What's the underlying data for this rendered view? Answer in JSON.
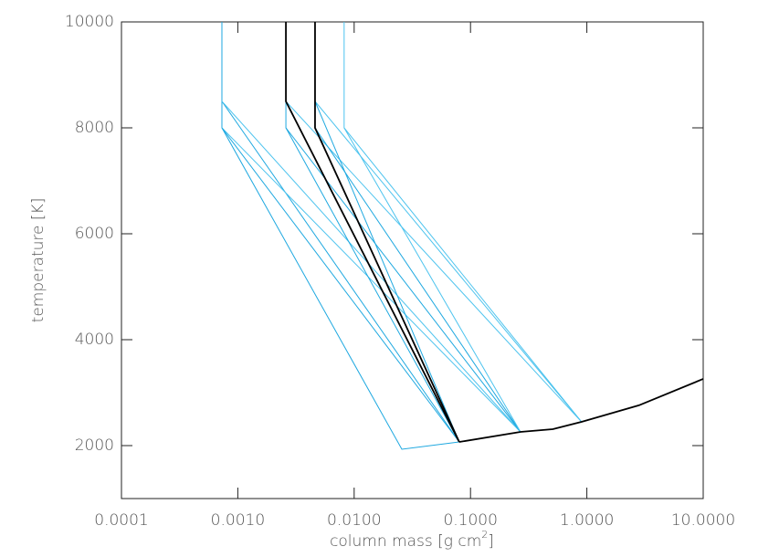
{
  "chart_data": {
    "type": "line",
    "xlabel": [
      "column mass [g cm",
      "2",
      "]"
    ],
    "ylabel": "temperature [K]",
    "xscale": "log",
    "xlim": [
      0.0001,
      10
    ],
    "ylim": [
      1000,
      10000
    ],
    "xticks": [
      {
        "value": 0.0001,
        "label": "0.0001"
      },
      {
        "value": 0.001,
        "label": "0.0010"
      },
      {
        "value": 0.01,
        "label": "0.0100"
      },
      {
        "value": 0.1,
        "label": "0.1000"
      },
      {
        "value": 1,
        "label": "1.0000"
      },
      {
        "value": 10,
        "label": "10.0000"
      }
    ],
    "yticks": [
      2000,
      4000,
      6000,
      8000,
      10000
    ],
    "series": [
      {
        "color": "#1ea8e0",
        "x": [
          0.00073,
          0.00073,
          0.0257,
          0.08
        ],
        "values": [
          10000,
          8000,
          1931,
          2069
        ]
      },
      {
        "color": "#1ea8e0",
        "x": [
          0.00073,
          0.08
        ],
        "values": [
          8500,
          2069
        ]
      },
      {
        "color": "#4cc3ee",
        "x": [
          0.00073,
          0.269
        ],
        "values": [
          8500,
          2259
        ]
      },
      {
        "color": "#4cc3ee",
        "x": [
          0.00073,
          0.269
        ],
        "values": [
          8000,
          2259
        ]
      },
      {
        "color": "#1ea8e0",
        "x": [
          0.00073,
          0.08
        ],
        "values": [
          8000,
          2069
        ]
      },
      {
        "color": "#1ea8e0",
        "x": [
          0.00259,
          0.00259,
          0.269
        ],
        "values": [
          8500,
          8000,
          2259
        ]
      },
      {
        "color": "#4cc3ee",
        "x": [
          0.00259,
          0.9
        ],
        "values": [
          8500,
          2448
        ]
      },
      {
        "color": "#1ea8e0",
        "x": [
          0.00259,
          0.08
        ],
        "values": [
          8000,
          2069
        ]
      },
      {
        "color": "#1ea8e0",
        "x": [
          0.00461,
          0.00461,
          0.269
        ],
        "values": [
          8500,
          8000,
          2259
        ]
      },
      {
        "color": "#4cc3ee",
        "x": [
          0.00461,
          0.9
        ],
        "values": [
          8500,
          2448
        ]
      },
      {
        "color": "#1ea8e0",
        "x": [
          0.00461,
          0.08
        ],
        "values": [
          8500,
          2069
        ]
      },
      {
        "color": "#4cc3ee",
        "x": [
          0.0082,
          0.0082,
          0.9
        ],
        "values": [
          10000,
          8000,
          2448
        ]
      },
      {
        "color": "#4cc3ee",
        "x": [
          0.0082,
          0.269
        ],
        "values": [
          8000,
          2259
        ]
      },
      {
        "color": "#000000",
        "x": [
          0.00259,
          0.00259,
          0.08
        ],
        "values": [
          10000,
          8500,
          2069
        ]
      },
      {
        "color": "#000000",
        "x": [
          0.00461,
          0.00461,
          0.08
        ],
        "values": [
          10000,
          8000,
          2069
        ]
      },
      {
        "color": "#000000",
        "x": [
          0.08,
          0.269,
          0.51,
          0.9,
          2.8,
          10
        ],
        "values": [
          2069,
          2259,
          2310,
          2448,
          2760,
          3259
        ]
      }
    ]
  }
}
